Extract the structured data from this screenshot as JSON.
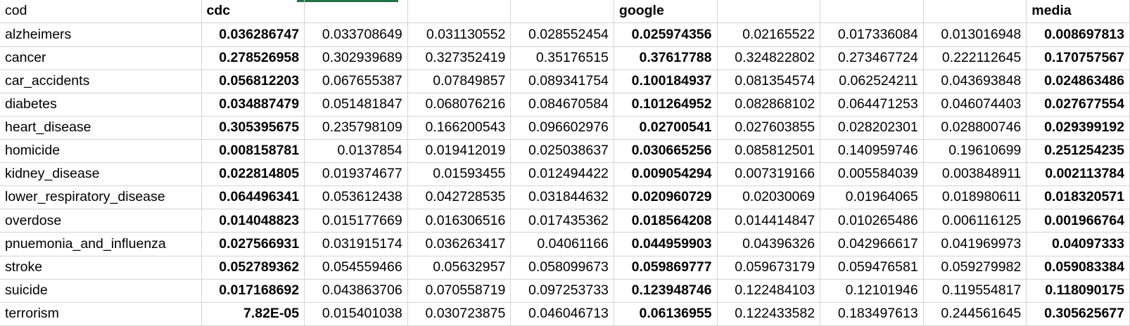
{
  "spreadsheet": {
    "header": [
      "cod",
      "cdc",
      "",
      "",
      "",
      "google",
      "",
      "",
      "",
      "media"
    ],
    "bold_columns": [
      1,
      5,
      9
    ],
    "rows": [
      {
        "cells": [
          "alzheimers",
          "0.036286747",
          "0.033708649",
          "0.031130552",
          "0.028552454",
          "0.025974356",
          "0.02165522",
          "0.017336084",
          "0.013016948",
          "0.008697813"
        ]
      },
      {
        "cells": [
          "cancer",
          "0.278526958",
          "0.302939689",
          "0.327352419",
          "0.35176515",
          "0.37617788",
          "0.324822802",
          "0.273467724",
          "0.222112645",
          "0.170757567"
        ]
      },
      {
        "cells": [
          "car_accidents",
          "0.056812203",
          "0.067655387",
          "0.07849857",
          "0.089341754",
          "0.100184937",
          "0.081354574",
          "0.062524211",
          "0.043693848",
          "0.024863486"
        ]
      },
      {
        "cells": [
          "diabetes",
          "0.034887479",
          "0.051481847",
          "0.068076216",
          "0.084670584",
          "0.101264952",
          "0.082868102",
          "0.064471253",
          "0.046074403",
          "0.027677554"
        ]
      },
      {
        "cells": [
          "heart_disease",
          "0.305395675",
          "0.235798109",
          "0.166200543",
          "0.096602976",
          "0.02700541",
          "0.027603855",
          "0.028202301",
          "0.028800746",
          "0.029399192"
        ]
      },
      {
        "cells": [
          "homicide",
          "0.008158781",
          "0.0137854",
          "0.019412019",
          "0.025038637",
          "0.030665256",
          "0.085812501",
          "0.140959746",
          "0.19610699",
          "0.251254235"
        ]
      },
      {
        "cells": [
          "kidney_disease",
          "0.022814805",
          "0.019374677",
          "0.01593455",
          "0.012494422",
          "0.009054294",
          "0.007319166",
          "0.005584039",
          "0.003848911",
          "0.002113784"
        ]
      },
      {
        "cells": [
          "lower_respiratory_disease",
          "0.064496341",
          "0.053612438",
          "0.042728535",
          "0.031844632",
          "0.020960729",
          "0.02030069",
          "0.01964065",
          "0.018980611",
          "0.018320571"
        ]
      },
      {
        "cells": [
          "overdose",
          "0.014048823",
          "0.015177669",
          "0.016306516",
          "0.017435362",
          "0.018564208",
          "0.014414847",
          "0.010265486",
          "0.006116125",
          "0.001966764"
        ]
      },
      {
        "cells": [
          "pnuemonia_and_influenza",
          "0.027566931",
          "0.031915174",
          "0.036263417",
          "0.04061166",
          "0.044959903",
          "0.04396326",
          "0.042966617",
          "0.041969973",
          "0.04097333"
        ]
      },
      {
        "cells": [
          "stroke",
          "0.052789362",
          "0.054559466",
          "0.05632957",
          "0.058099673",
          "0.059869777",
          "0.059673179",
          "0.059476581",
          "0.059279982",
          "0.059083384"
        ]
      },
      {
        "cells": [
          "suicide",
          "0.017168692",
          "0.043863706",
          "0.070558719",
          "0.097253733",
          "0.123948746",
          "0.122484103",
          "0.12101946",
          "0.119554817",
          "0.118090175"
        ]
      },
      {
        "cells": [
          "terrorism",
          "7.82E-05",
          "0.015401038",
          "0.030723875",
          "0.046046713",
          "0.06136955",
          "0.122433582",
          "0.183497613",
          "0.244561645",
          "0.305625677"
        ]
      }
    ]
  },
  "colors": {
    "gridline": "#d4d4d4",
    "selection_accent": "#217346"
  }
}
